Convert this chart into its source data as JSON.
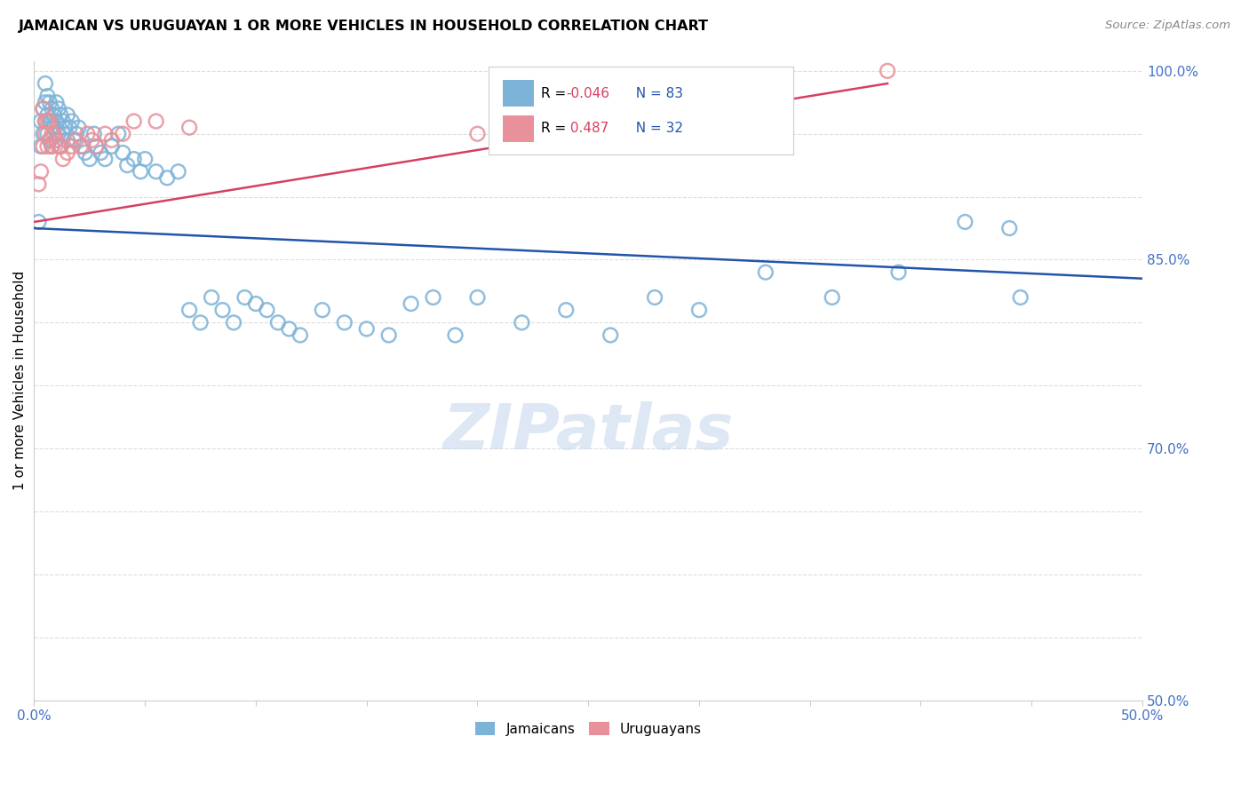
{
  "title": "JAMAICAN VS URUGUAYAN 1 OR MORE VEHICLES IN HOUSEHOLD CORRELATION CHART",
  "source": "Source: ZipAtlas.com",
  "ylabel": "1 or more Vehicles in Household",
  "x_min": 0.0,
  "x_max": 0.5,
  "y_min": 0.5,
  "y_max": 1.008,
  "blue_color": "#7EB3D8",
  "pink_color": "#E8919A",
  "blue_line_color": "#2255AA",
  "pink_line_color": "#D64060",
  "r_blue": -0.046,
  "n_blue": 83,
  "r_pink": 0.487,
  "n_pink": 32,
  "watermark": "ZIPatlas",
  "bg_color": "#FFFFFF",
  "grid_color": "#DDDDDD",
  "blue_x": [
    0.002,
    0.003,
    0.003,
    0.004,
    0.004,
    0.005,
    0.005,
    0.005,
    0.006,
    0.006,
    0.006,
    0.007,
    0.007,
    0.007,
    0.008,
    0.008,
    0.008,
    0.009,
    0.009,
    0.01,
    0.01,
    0.01,
    0.011,
    0.011,
    0.012,
    0.012,
    0.013,
    0.013,
    0.014,
    0.015,
    0.015,
    0.016,
    0.017,
    0.018,
    0.019,
    0.02,
    0.022,
    0.023,
    0.025,
    0.027,
    0.028,
    0.03,
    0.032,
    0.035,
    0.038,
    0.04,
    0.042,
    0.045,
    0.048,
    0.05,
    0.055,
    0.06,
    0.065,
    0.07,
    0.075,
    0.08,
    0.085,
    0.09,
    0.095,
    0.1,
    0.105,
    0.11,
    0.115,
    0.12,
    0.13,
    0.14,
    0.15,
    0.16,
    0.17,
    0.18,
    0.19,
    0.2,
    0.22,
    0.24,
    0.26,
    0.28,
    0.3,
    0.33,
    0.36,
    0.39,
    0.42,
    0.44,
    0.445
  ],
  "blue_y": [
    0.88,
    0.96,
    0.94,
    0.97,
    0.95,
    0.99,
    0.975,
    0.96,
    0.98,
    0.965,
    0.95,
    0.975,
    0.96,
    0.945,
    0.97,
    0.96,
    0.94,
    0.965,
    0.955,
    0.975,
    0.96,
    0.945,
    0.97,
    0.95,
    0.965,
    0.94,
    0.96,
    0.95,
    0.955,
    0.965,
    0.945,
    0.955,
    0.96,
    0.945,
    0.95,
    0.955,
    0.94,
    0.935,
    0.93,
    0.95,
    0.94,
    0.935,
    0.93,
    0.94,
    0.95,
    0.935,
    0.925,
    0.93,
    0.92,
    0.93,
    0.92,
    0.915,
    0.92,
    0.81,
    0.8,
    0.82,
    0.81,
    0.8,
    0.82,
    0.815,
    0.81,
    0.8,
    0.795,
    0.79,
    0.81,
    0.8,
    0.795,
    0.79,
    0.815,
    0.82,
    0.79,
    0.82,
    0.8,
    0.81,
    0.79,
    0.82,
    0.81,
    0.84,
    0.82,
    0.84,
    0.88,
    0.875,
    0.82
  ],
  "pink_x": [
    0.002,
    0.003,
    0.004,
    0.004,
    0.005,
    0.005,
    0.006,
    0.006,
    0.007,
    0.007,
    0.008,
    0.008,
    0.009,
    0.01,
    0.011,
    0.012,
    0.013,
    0.015,
    0.017,
    0.019,
    0.021,
    0.024,
    0.026,
    0.028,
    0.032,
    0.035,
    0.04,
    0.045,
    0.055,
    0.07,
    0.2,
    0.385
  ],
  "pink_y": [
    0.91,
    0.92,
    0.94,
    0.97,
    0.96,
    0.95,
    0.94,
    0.96,
    0.945,
    0.96,
    0.95,
    0.94,
    0.95,
    0.945,
    0.94,
    0.94,
    0.93,
    0.935,
    0.94,
    0.945,
    0.94,
    0.95,
    0.945,
    0.94,
    0.95,
    0.945,
    0.95,
    0.96,
    0.96,
    0.955,
    0.95,
    1.0
  ]
}
